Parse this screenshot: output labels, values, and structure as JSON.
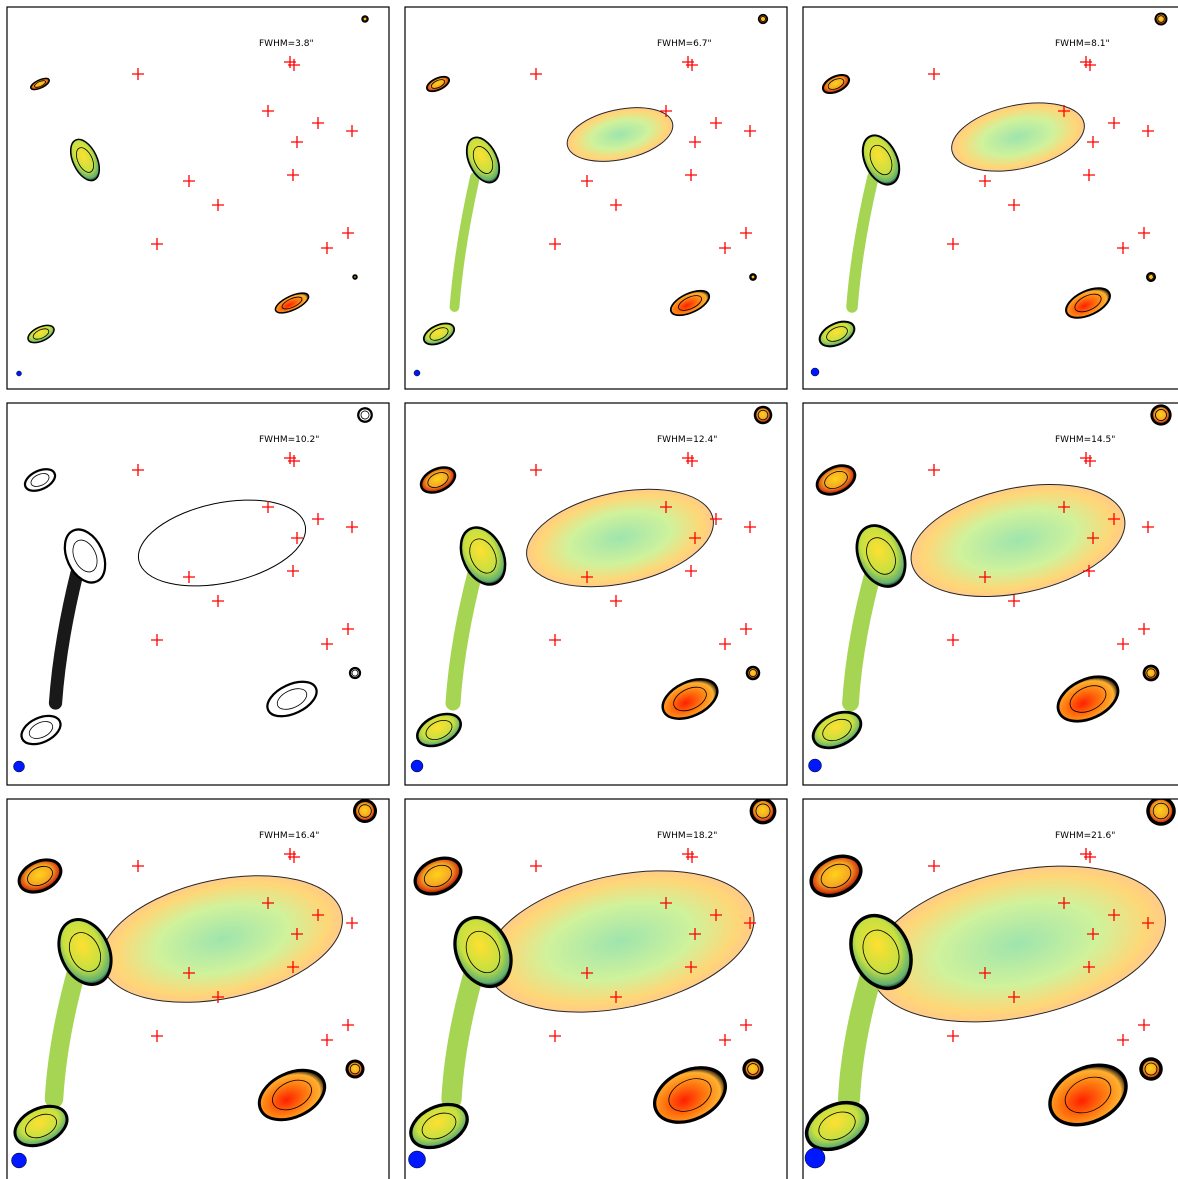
{
  "panels": [
    {
      "label": "FWHM=3.8\""
    },
    {
      "label": "FWHM=6.7\""
    },
    {
      "label": "FWHM=8.1\""
    },
    {
      "label": "FWHM=10.2\""
    },
    {
      "label": "FWHM=12.4\""
    },
    {
      "label": "FWHM=14.5\""
    },
    {
      "label": "FWHM=16.4\""
    },
    {
      "label": "FWHM=18.2\""
    },
    {
      "label": "FWHM=21.6\""
    }
  ]
}
